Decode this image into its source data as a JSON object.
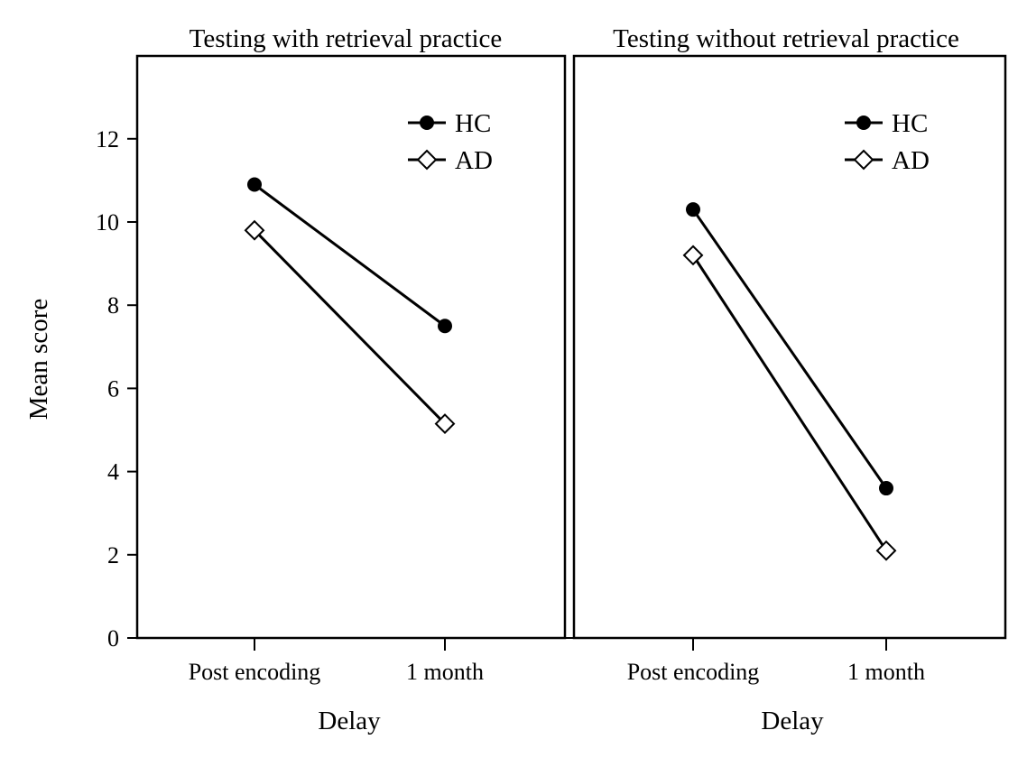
{
  "chart_data": {
    "type": "line",
    "ylabel": "Mean score",
    "ylim": [
      0,
      14
    ],
    "yticks": [
      0,
      2,
      4,
      6,
      8,
      10,
      12
    ],
    "categories": [
      "Post encoding",
      "1 month"
    ],
    "xlabel": "Delay",
    "legend_position": "top-right",
    "panels": [
      {
        "title": "Testing with retrieval practice",
        "xlabel": "Delay",
        "series": [
          {
            "name": "HC",
            "marker": "filled-circle",
            "values": [
              10.9,
              7.5
            ]
          },
          {
            "name": "AD",
            "marker": "open-diamond",
            "values": [
              9.8,
              5.15
            ]
          }
        ]
      },
      {
        "title": "Testing without retrieval practice",
        "xlabel": "Delay",
        "series": [
          {
            "name": "HC",
            "marker": "filled-circle",
            "values": [
              10.3,
              3.6
            ]
          },
          {
            "name": "AD",
            "marker": "open-diamond",
            "values": [
              9.2,
              2.1
            ]
          }
        ]
      }
    ]
  }
}
